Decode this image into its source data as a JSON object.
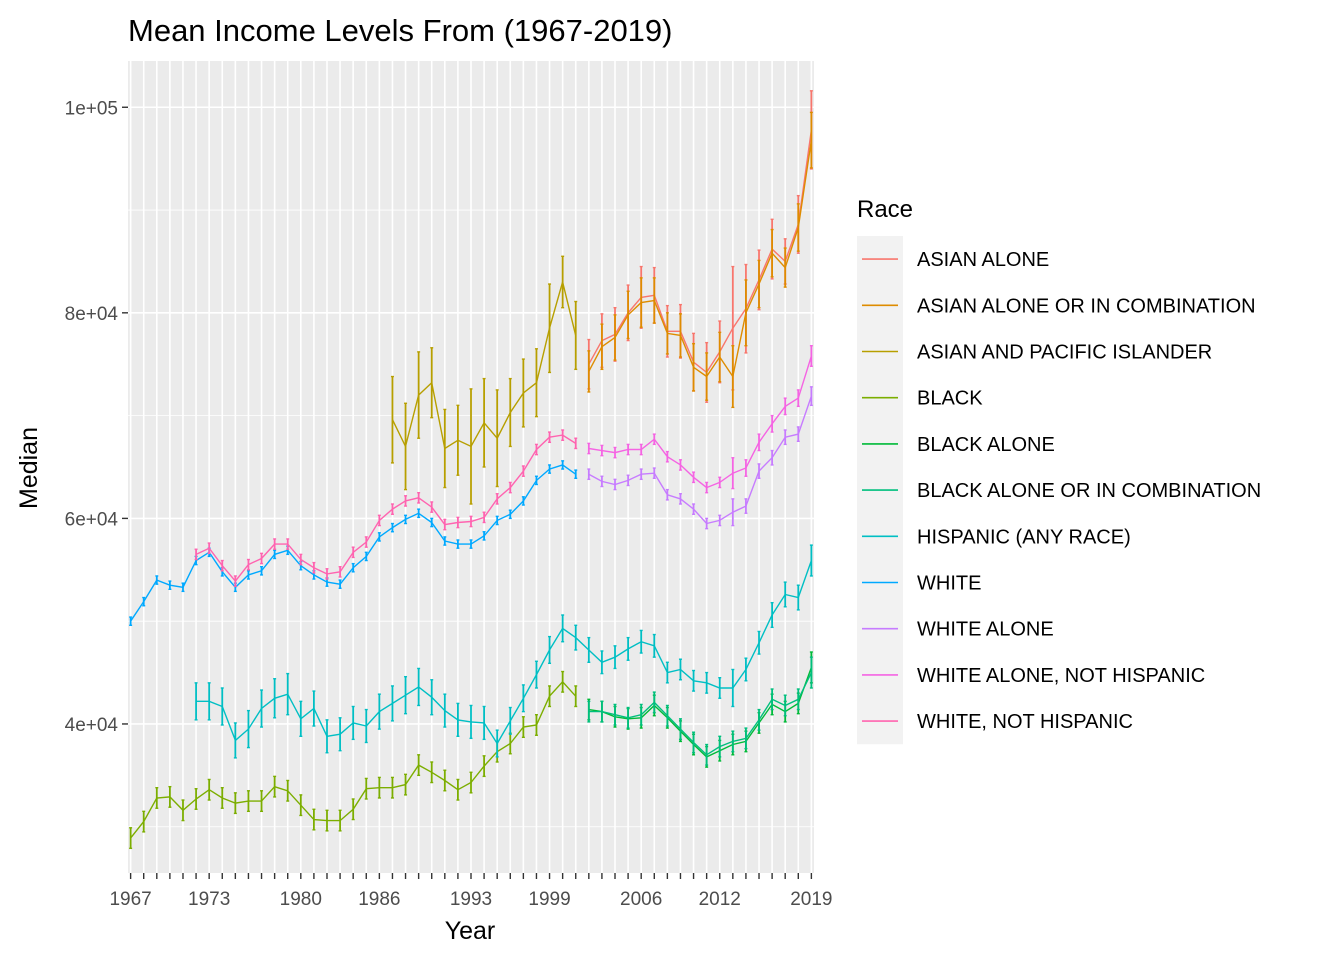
{
  "chart_data": {
    "type": "line",
    "title": "Mean Income Levels From (1967-2019)",
    "xlabel": "Year",
    "ylabel": "Median",
    "xlim": [
      1966.8,
      2019.2
    ],
    "ylim": [
      25500,
      104500
    ],
    "x_ticks": [
      {
        "value": 1967,
        "label": "1967"
      },
      {
        "value": 1973,
        "label": "1973"
      },
      {
        "value": 1980,
        "label": "1980"
      },
      {
        "value": 1986,
        "label": "1986"
      },
      {
        "value": 1993,
        "label": "1993"
      },
      {
        "value": 1999,
        "label": "1999"
      },
      {
        "value": 2006,
        "label": "2006"
      },
      {
        "value": 2012,
        "label": "2012"
      },
      {
        "value": 2019,
        "label": "2019"
      }
    ],
    "y_ticks": [
      {
        "value": 40000,
        "label": "4e+04"
      },
      {
        "value": 60000,
        "label": "6e+04"
      },
      {
        "value": 80000,
        "label": "8e+04"
      },
      {
        "value": 100000,
        "label": "1e+05"
      }
    ],
    "y_minor": [
      30000,
      50000,
      70000,
      90000
    ],
    "grid": true,
    "legend": {
      "title": "Race",
      "position": "right"
    },
    "series": [
      {
        "name": "ASIAN ALONE",
        "color": "#F8766D",
        "x": [
          2002,
          2003,
          2004,
          2005,
          2006,
          2007,
          2008,
          2009,
          2010,
          2011,
          2012,
          2013,
          2014,
          2015,
          2016,
          2017,
          2018,
          2019
        ],
        "y": [
          75000,
          77300,
          77900,
          80000,
          81500,
          81700,
          78200,
          78200,
          75200,
          74200,
          76200,
          78500,
          80400,
          83200,
          86200,
          85000,
          88600,
          97800
        ],
        "err": [
          2400,
          2600,
          2600,
          2700,
          3000,
          2700,
          2500,
          2600,
          2800,
          2900,
          3000,
          6000,
          4300,
          2900,
          2900,
          2200,
          2800,
          3800
        ]
      },
      {
        "name": "ASIAN ALONE OR IN COMBINATION",
        "color": "#DE8C00",
        "x": [
          2002,
          2003,
          2004,
          2005,
          2006,
          2007,
          2008,
          2009,
          2010,
          2011,
          2012,
          2013,
          2014,
          2015,
          2016,
          2017,
          2018,
          2019
        ],
        "y": [
          74300,
          76700,
          77600,
          79800,
          81000,
          81200,
          78000,
          77800,
          74700,
          73800,
          75700,
          73800,
          80000,
          82800,
          85800,
          84400,
          88300,
          96800
        ],
        "err": [
          2000,
          2200,
          2200,
          2300,
          2400,
          2200,
          2000,
          2100,
          2300,
          2300,
          2400,
          3000,
          3200,
          2300,
          2300,
          1900,
          2300,
          2700
        ]
      },
      {
        "name": "ASIAN AND PACIFIC ISLANDER",
        "color": "#B79F00",
        "x": [
          1987,
          1988,
          1989,
          1990,
          1991,
          1992,
          1993,
          1994,
          1995,
          1996,
          1997,
          1998,
          1999,
          2000,
          2001
        ],
        "y": [
          69600,
          67000,
          72000,
          73200,
          66800,
          67600,
          67000,
          69300,
          67800,
          70300,
          72200,
          73200,
          78500,
          83000,
          77800
        ],
        "err": [
          4200,
          4200,
          4200,
          3400,
          3800,
          3400,
          5600,
          4300,
          4700,
          3300,
          3300,
          3300,
          4300,
          2500,
          3300
        ]
      },
      {
        "name": "BLACK",
        "color": "#7CAE00",
        "x": [
          1967,
          1968,
          1969,
          1970,
          1971,
          1972,
          1973,
          1974,
          1975,
          1976,
          1977,
          1978,
          1979,
          1980,
          1981,
          1982,
          1983,
          1984,
          1985,
          1986,
          1987,
          1988,
          1989,
          1990,
          1991,
          1992,
          1993,
          1994,
          1995,
          1996,
          1997,
          1998,
          1999,
          2000,
          2001
        ],
        "y": [
          28900,
          30500,
          32800,
          32900,
          31600,
          32700,
          33600,
          32800,
          32300,
          32500,
          32500,
          33900,
          33500,
          32100,
          30700,
          30600,
          30600,
          31700,
          33700,
          33800,
          33800,
          34100,
          36000,
          35300,
          34500,
          33600,
          34300,
          35900,
          37300,
          38100,
          39700,
          39900,
          42700,
          44100,
          42700
        ],
        "err": [
          1000,
          1000,
          1000,
          1000,
          1000,
          1000,
          1000,
          1000,
          1000,
          1000,
          1000,
          1000,
          1000,
          1000,
          1000,
          1000,
          1000,
          1000,
          1000,
          1000,
          1000,
          1000,
          1000,
          1000,
          1000,
          1000,
          1000,
          1000,
          1000,
          1000,
          1000,
          1000,
          1000,
          1000,
          1000
        ]
      },
      {
        "name": "BLACK ALONE",
        "color": "#00BA38",
        "x": [
          2002,
          2003,
          2004,
          2005,
          2006,
          2007,
          2008,
          2009,
          2010,
          2011,
          2012,
          2013,
          2014,
          2015,
          2016,
          2017,
          2018,
          2019
        ],
        "y": [
          41400,
          41200,
          40700,
          40500,
          40600,
          41800,
          40600,
          39300,
          38000,
          36800,
          37400,
          38000,
          38300,
          40100,
          41900,
          41200,
          42000,
          45500
        ],
        "err": [
          1000,
          1000,
          1000,
          1000,
          1000,
          1000,
          1000,
          1000,
          1000,
          1000,
          1000,
          1000,
          1000,
          1000,
          1000,
          1000,
          1000,
          1500
        ]
      },
      {
        "name": "BLACK ALONE OR IN COMBINATION",
        "color": "#00BF7D",
        "x": [
          2002,
          2003,
          2004,
          2005,
          2006,
          2007,
          2008,
          2009,
          2010,
          2011,
          2012,
          2013,
          2014,
          2015,
          2016,
          2017,
          2018,
          2019
        ],
        "y": [
          41200,
          41200,
          40900,
          40600,
          40900,
          42100,
          40800,
          39500,
          38200,
          37000,
          37800,
          38300,
          38600,
          40400,
          42400,
          41800,
          42400,
          45000
        ],
        "err": [
          1000,
          1000,
          1000,
          1000,
          1000,
          1000,
          1000,
          1000,
          1000,
          1000,
          1000,
          1000,
          1000,
          1000,
          1000,
          1000,
          1000,
          1500
        ]
      },
      {
        "name": "HISPANIC (ANY RACE)",
        "color": "#00BFC4",
        "x": [
          1972,
          1973,
          1974,
          1975,
          1976,
          1977,
          1978,
          1979,
          1980,
          1981,
          1982,
          1983,
          1984,
          1985,
          1986,
          1987,
          1988,
          1989,
          1990,
          1991,
          1992,
          1993,
          1994,
          1995,
          1996,
          1997,
          1998,
          1999,
          2000,
          2001,
          2002,
          2003,
          2004,
          2005,
          2006,
          2007,
          2008,
          2009,
          2010,
          2011,
          2012,
          2013,
          2014,
          2015,
          2016,
          2017,
          2018,
          2019
        ],
        "y": [
          42200,
          42200,
          41700,
          38400,
          39500,
          41500,
          42500,
          42900,
          40500,
          41500,
          38800,
          39000,
          40100,
          39800,
          41200,
          42000,
          42800,
          43600,
          42600,
          41300,
          40400,
          40200,
          40100,
          38100,
          40300,
          42500,
          44800,
          47200,
          49300,
          48400,
          47200,
          46000,
          46500,
          47300,
          48000,
          47600,
          45000,
          45300,
          44200,
          44000,
          43500,
          43500,
          45300,
          47900,
          50600,
          52600,
          52300,
          55900
        ],
        "err": [
          1800,
          1800,
          1800,
          1700,
          1800,
          1800,
          1900,
          2000,
          1700,
          1700,
          1600,
          1600,
          1600,
          1600,
          1700,
          1700,
          1800,
          1800,
          1700,
          1600,
          1600,
          1600,
          1600,
          1300,
          1300,
          1300,
          1300,
          1300,
          1300,
          1200,
          1200,
          1100,
          1100,
          1100,
          1100,
          1100,
          1000,
          1000,
          1000,
          1000,
          1000,
          1800,
          1100,
          1100,
          1200,
          1200,
          1200,
          1500
        ]
      },
      {
        "name": "WHITE",
        "color": "#00A9FF",
        "x": [
          1967,
          1968,
          1969,
          1970,
          1971,
          1972,
          1973,
          1974,
          1975,
          1976,
          1977,
          1978,
          1979,
          1980,
          1981,
          1982,
          1983,
          1984,
          1985,
          1986,
          1987,
          1988,
          1989,
          1990,
          1991,
          1992,
          1993,
          1994,
          1995,
          1996,
          1997,
          1998,
          1999,
          2000,
          2001
        ],
        "y": [
          50000,
          51900,
          54000,
          53500,
          53300,
          55900,
          56700,
          54800,
          53300,
          54500,
          54900,
          56500,
          56900,
          55400,
          54500,
          53800,
          53600,
          55200,
          56300,
          58200,
          59100,
          59900,
          60500,
          59600,
          57800,
          57500,
          57500,
          58300,
          59800,
          60400,
          61700,
          63700,
          64800,
          65200,
          64300
        ],
        "err": [
          400,
          400,
          400,
          400,
          400,
          400,
          400,
          400,
          400,
          400,
          400,
          400,
          400,
          400,
          400,
          400,
          400,
          400,
          400,
          400,
          400,
          400,
          400,
          400,
          400,
          400,
          400,
          400,
          400,
          400,
          400,
          400,
          400,
          400,
          400
        ]
      },
      {
        "name": "WHITE ALONE",
        "color": "#C77CFF",
        "x": [
          2002,
          2003,
          2004,
          2005,
          2006,
          2007,
          2008,
          2009,
          2010,
          2011,
          2012,
          2013,
          2014,
          2015,
          2016,
          2017,
          2018,
          2019
        ],
        "y": [
          64300,
          63600,
          63300,
          63700,
          64300,
          64400,
          62300,
          61900,
          60900,
          59500,
          59800,
          60600,
          61200,
          64600,
          65900,
          67900,
          68200,
          71900
        ],
        "err": [
          500,
          500,
          500,
          500,
          500,
          500,
          500,
          500,
          500,
          500,
          500,
          1300,
          700,
          700,
          700,
          700,
          700,
          900
        ]
      },
      {
        "name": "WHITE ALONE, NOT HISPANIC",
        "color": "#F564E3",
        "x": [
          2002,
          2003,
          2004,
          2005,
          2006,
          2007,
          2008,
          2009,
          2010,
          2011,
          2012,
          2013,
          2014,
          2015,
          2016,
          2017,
          2018,
          2019
        ],
        "y": [
          66800,
          66600,
          66400,
          66700,
          66700,
          67700,
          66000,
          65200,
          64000,
          63000,
          63500,
          64400,
          64900,
          67400,
          69200,
          70900,
          71700,
          75800
        ],
        "err": [
          500,
          500,
          500,
          500,
          500,
          500,
          500,
          500,
          500,
          500,
          500,
          1500,
          800,
          800,
          800,
          800,
          800,
          1000
        ]
      },
      {
        "name": "WHITE, NOT HISPANIC",
        "color": "#FF64B0",
        "x": [
          1972,
          1973,
          1974,
          1975,
          1976,
          1977,
          1978,
          1979,
          1980,
          1981,
          1982,
          1983,
          1984,
          1985,
          1986,
          1987,
          1988,
          1989,
          1990,
          1991,
          1992,
          1993,
          1994,
          1995,
          1996,
          1997,
          1998,
          1999,
          2000,
          2001
        ],
        "y": [
          56500,
          57100,
          55400,
          53900,
          55500,
          56100,
          57500,
          57500,
          56000,
          55200,
          54600,
          54800,
          56700,
          57700,
          59800,
          60900,
          61700,
          62000,
          61100,
          59400,
          59600,
          59700,
          60100,
          61900,
          63000,
          64600,
          66700,
          67900,
          68100,
          67300
        ],
        "err": [
          500,
          500,
          500,
          500,
          500,
          500,
          500,
          500,
          500,
          500,
          500,
          500,
          500,
          500,
          500,
          500,
          500,
          500,
          500,
          500,
          500,
          500,
          500,
          500,
          500,
          500,
          500,
          500,
          500,
          500
        ]
      }
    ]
  }
}
